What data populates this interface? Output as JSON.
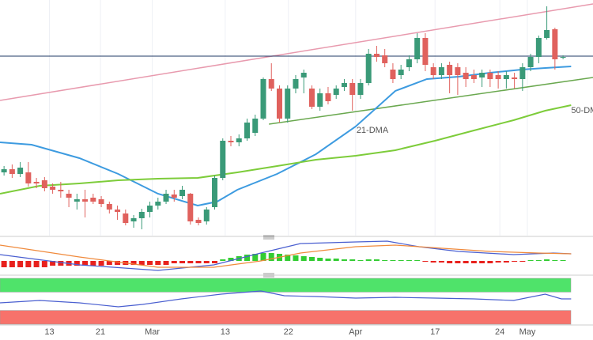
{
  "chart_data": [
    {
      "type": "candlestick",
      "xlim": [
        -0.5,
        72.7
      ],
      "ylim": [
        0,
        298
      ],
      "up_color": "#3a9a78",
      "down_color": "#e0615d",
      "open": [
        80,
        84,
        78,
        80,
        68,
        70,
        62,
        58,
        53,
        43,
        46,
        48,
        46,
        40,
        33,
        28,
        18,
        22,
        30,
        38,
        43,
        52,
        50,
        53,
        20,
        18,
        36,
        73,
        120,
        118,
        123,
        130,
        148,
        198,
        186,
        148,
        186,
        200,
        186,
        163,
        180,
        178,
        188,
        193,
        178,
        193,
        230,
        228,
        210,
        203,
        213,
        223,
        250,
        213,
        203,
        216,
        213,
        206,
        203,
        200,
        206,
        203,
        198,
        200,
        198,
        213,
        226,
        250,
        261,
        226
      ],
      "high": [
        88,
        90,
        93,
        93,
        73,
        74,
        66,
        68,
        58,
        53,
        58,
        53,
        50,
        43,
        38,
        33,
        26,
        34,
        43,
        48,
        58,
        58,
        63,
        54,
        23,
        36,
        76,
        123,
        126,
        128,
        148,
        153,
        200,
        218,
        190,
        190,
        203,
        210,
        190,
        186,
        188,
        190,
        198,
        198,
        198,
        236,
        240,
        236,
        218,
        216,
        228,
        256,
        256,
        218,
        218,
        220,
        218,
        213,
        210,
        210,
        210,
        208,
        208,
        206,
        218,
        230,
        253,
        290,
        263,
        228
      ],
      "low": [
        76,
        73,
        74,
        62,
        60,
        56,
        53,
        48,
        36,
        33,
        23,
        40,
        36,
        28,
        20,
        13,
        10,
        8,
        23,
        33,
        40,
        43,
        46,
        14,
        13,
        14,
        33,
        70,
        113,
        113,
        120,
        126,
        146,
        183,
        143,
        143,
        180,
        180,
        160,
        158,
        166,
        173,
        183,
        158,
        173,
        190,
        220,
        213,
        193,
        198,
        208,
        218,
        208,
        198,
        198,
        180,
        178,
        188,
        193,
        188,
        188,
        186,
        186,
        186,
        183,
        208,
        218,
        248,
        210,
        223
      ],
      "close": [
        84,
        78,
        86,
        66,
        66,
        60,
        58,
        56,
        48,
        46,
        43,
        43,
        40,
        33,
        30,
        16,
        22,
        30,
        38,
        43,
        53,
        48,
        58,
        18,
        16,
        33,
        73,
        120,
        118,
        123,
        143,
        148,
        198,
        186,
        148,
        186,
        198,
        206,
        163,
        180,
        170,
        186,
        193,
        178,
        193,
        230,
        226,
        218,
        198,
        210,
        223,
        250,
        216,
        203,
        213,
        203,
        203,
        198,
        198,
        206,
        198,
        198,
        203,
        198,
        213,
        226,
        250,
        260,
        223,
        226
      ],
      "series": [
        {
          "name": "21-DMA",
          "color": "#3d9be0",
          "x": [
            -0.5,
            3.4,
            9.3,
            14.1,
            19,
            23.9,
            26.3,
            28.8,
            33.7,
            38.5,
            43.4,
            48.3,
            52.2,
            56.1,
            60,
            63.9,
            66.8,
            70
          ],
          "values": [
            118,
            115,
            98,
            78,
            53,
            38,
            43,
            58,
            78,
            103,
            138,
            183,
            198,
            201,
            206,
            210,
            212,
            214
          ]
        },
        {
          "name": "50-DM",
          "color": "#7dcc3a",
          "x": [
            -0.5,
            4.4,
            9.3,
            14.1,
            19,
            23.9,
            28.8,
            33.7,
            38.5,
            43.4,
            48.3,
            53.2,
            58,
            62.9,
            66.8,
            70
          ],
          "values": [
            53,
            63,
            66,
            70,
            72,
            73,
            80,
            88,
            96,
            101,
            108,
            120,
            133,
            146,
            158,
            165
          ]
        }
      ],
      "trendlines": [
        {
          "color": "#e89aae",
          "x": [
            -0.5,
            72.7
          ],
          "values": [
            171,
            293
          ]
        },
        {
          "color": "#6aa84f",
          "x": [
            32.7,
            72.7
          ],
          "values": [
            141,
            200
          ]
        }
      ],
      "price_line": {
        "value": 227,
        "color": "#1f3864"
      }
    },
    {
      "type": "macd",
      "xlim": [
        -0.5,
        72.7
      ],
      "ylim": [
        -17,
        30
      ],
      "up_color": "#33cc33",
      "down_color": "#e8211d",
      "histogram": [
        -8,
        -8,
        -8,
        -8,
        -8,
        -8,
        -6,
        -6,
        -6,
        -6,
        -6,
        -6,
        -6,
        -5,
        -5,
        -5,
        -5,
        -5,
        -5,
        -5,
        -5,
        -3,
        -3,
        -3,
        -3,
        -3,
        -3,
        2,
        4,
        6,
        8,
        9,
        10,
        10,
        9,
        8,
        7,
        6,
        5,
        4,
        3,
        3,
        2,
        2,
        1,
        2,
        2,
        1,
        1,
        1,
        1,
        1,
        -1,
        -2,
        -2,
        -3,
        -3,
        -3,
        -3,
        -3,
        -3,
        -2,
        -2,
        -1,
        -1,
        1,
        1,
        2,
        1,
        1
      ],
      "series": [
        {
          "color": "#4a5fd0",
          "x": [
            -0.5,
            9.3,
            19,
            25.9,
            31.7,
            36.6,
            43.4,
            47.3,
            51.2,
            56.1,
            62.9,
            67.8,
            70
          ],
          "values": [
            8,
            -5,
            -12,
            -5,
            10,
            22,
            24,
            25,
            18,
            12,
            8,
            10,
            9
          ]
        },
        {
          "color": "#f08a3c",
          "x": [
            -0.5,
            9.3,
            19,
            25.9,
            31.7,
            36.6,
            43.4,
            48.3,
            54.1,
            60,
            65.9,
            70
          ],
          "values": [
            20,
            5,
            -8,
            -8,
            0,
            10,
            18,
            20,
            16,
            12,
            10,
            9
          ]
        }
      ]
    },
    {
      "type": "oscillator",
      "xlim": [
        -0.5,
        72.7
      ],
      "ylim": [
        0,
        100
      ],
      "bands": [
        {
          "range": [
            70,
            100
          ],
          "color": "#4fe36a"
        },
        {
          "range": [
            0,
            30
          ],
          "color": "#f7726b"
        }
      ],
      "series": [
        {
          "color": "#4a5fd0",
          "x": [
            -0.5,
            4.4,
            9.3,
            14.1,
            17.1,
            21.9,
            26.8,
            31.7,
            34.6,
            38.5,
            43.4,
            48.3,
            53.2,
            58,
            62.9,
            66.8,
            68.8,
            70
          ],
          "values": [
            46.6,
            51.7,
            46.6,
            37.9,
            43.1,
            55.2,
            65.5,
            72.4,
            62.1,
            60.3,
            56.9,
            58.6,
            56.9,
            55.2,
            51.7,
            65.5,
            55.2,
            55.2
          ]
        }
      ],
      "xticks": [
        {
          "value": 5.6,
          "label": "13"
        },
        {
          "value": 11.9,
          "label": "21"
        },
        {
          "value": 18.3,
          "label": "Mar"
        },
        {
          "value": 27.3,
          "label": "13"
        },
        {
          "value": 35.1,
          "label": "22"
        },
        {
          "value": 43.4,
          "label": "Apr"
        },
        {
          "value": 53.2,
          "label": "17"
        },
        {
          "value": 61.2,
          "label": "24"
        },
        {
          "value": 64.6,
          "label": "May"
        }
      ]
    }
  ]
}
